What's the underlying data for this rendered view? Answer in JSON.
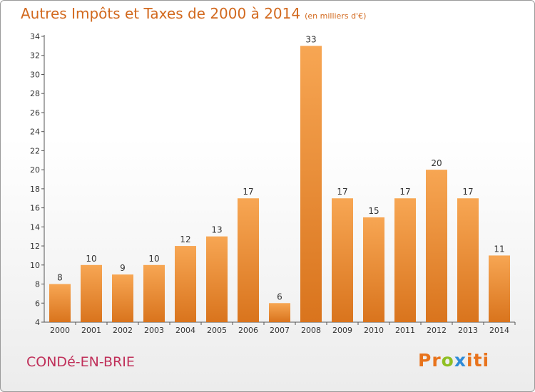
{
  "header": {
    "title": "Autres Impôts et Taxes de 2000 à 2014",
    "subtitle": "(en milliers d'€)"
  },
  "footer": {
    "city": "CONDé-EN-BRIE",
    "logo": [
      "P",
      "r",
      "o",
      "x",
      "i",
      "t",
      "i"
    ],
    "logo_colors": [
      "#e8731c",
      "#e8731c",
      "#8fbf23",
      "#2e8bd8",
      "#e8731c",
      "#e8731c",
      "#e8731c"
    ]
  },
  "colors": {
    "bar_top": "#f7a653",
    "bar_bottom": "#d9741d",
    "title": "#d2691e",
    "city": "#c0305a"
  },
  "chart_data": {
    "type": "bar",
    "title": "Autres Impôts et Taxes de 2000 à 2014",
    "subtitle": "(en milliers d'€)",
    "categories": [
      "2000",
      "2001",
      "2002",
      "2003",
      "2004",
      "2005",
      "2006",
      "2007",
      "2008",
      "2009",
      "2010",
      "2011",
      "2012",
      "2013",
      "2014"
    ],
    "values": [
      8,
      10,
      9,
      10,
      12,
      13,
      17,
      6,
      33,
      17,
      15,
      17,
      20,
      17,
      11
    ],
    "ylim": [
      4,
      34
    ],
    "yticks": [
      4,
      6,
      8,
      10,
      12,
      14,
      16,
      18,
      20,
      22,
      24,
      26,
      28,
      30,
      32,
      34
    ],
    "grid": false,
    "legend": "none"
  }
}
